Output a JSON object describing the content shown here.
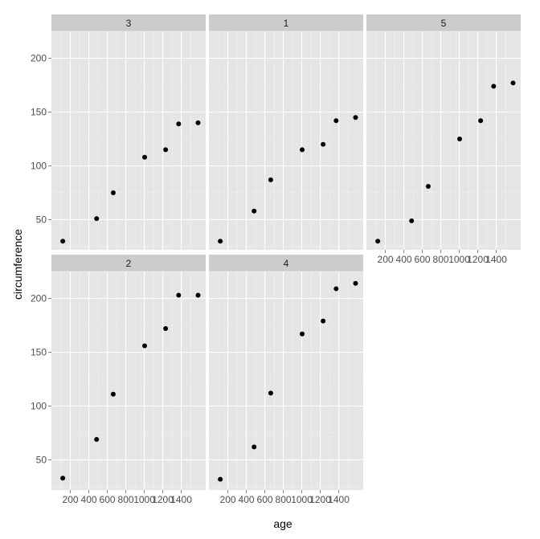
{
  "chart_data": {
    "type": "scatter",
    "layout": "faceted",
    "xlabel": "age",
    "ylabel": "circumference",
    "xlim": [
      30,
      1630
    ],
    "ylim": [
      22,
      225
    ],
    "x_ticks": [
      200,
      400,
      600,
      800,
      1000,
      1200,
      1400
    ],
    "x_tick_labels": [
      "200",
      "400",
      "600",
      "800",
      "1000",
      "1200",
      "1400"
    ],
    "y_ticks": [
      50,
      100,
      150,
      200
    ],
    "y_tick_labels": [
      "50",
      "100",
      "150",
      "200"
    ],
    "grid": true,
    "colors": {
      "panel_background": "#e5e5e5",
      "grid_major": "#ffffff",
      "grid_minor": "#f2f2f2",
      "strip_background": "#cccccc",
      "point": "#000000",
      "tick_text": "#4d4d4d"
    },
    "panels": [
      {
        "label": "3",
        "x": [
          118,
          484,
          664,
          1004,
          1231,
          1372,
          1582
        ],
        "y": [
          30,
          51,
          75,
          108,
          115,
          139,
          140
        ]
      },
      {
        "label": "1",
        "x": [
          118,
          484,
          664,
          1004,
          1231,
          1372,
          1582
        ],
        "y": [
          30,
          58,
          87,
          115,
          120,
          142,
          145
        ]
      },
      {
        "label": "5",
        "x": [
          118,
          484,
          664,
          1004,
          1231,
          1372,
          1582
        ],
        "y": [
          30,
          49,
          81,
          125,
          142,
          174,
          177
        ]
      },
      {
        "label": "2",
        "x": [
          118,
          484,
          664,
          1004,
          1231,
          1372,
          1582
        ],
        "y": [
          33,
          69,
          111,
          156,
          172,
          203,
          203
        ]
      },
      {
        "label": "4",
        "x": [
          118,
          484,
          664,
          1004,
          1231,
          1372,
          1582
        ],
        "y": [
          32,
          62,
          112,
          167,
          179,
          209,
          214
        ]
      }
    ]
  }
}
